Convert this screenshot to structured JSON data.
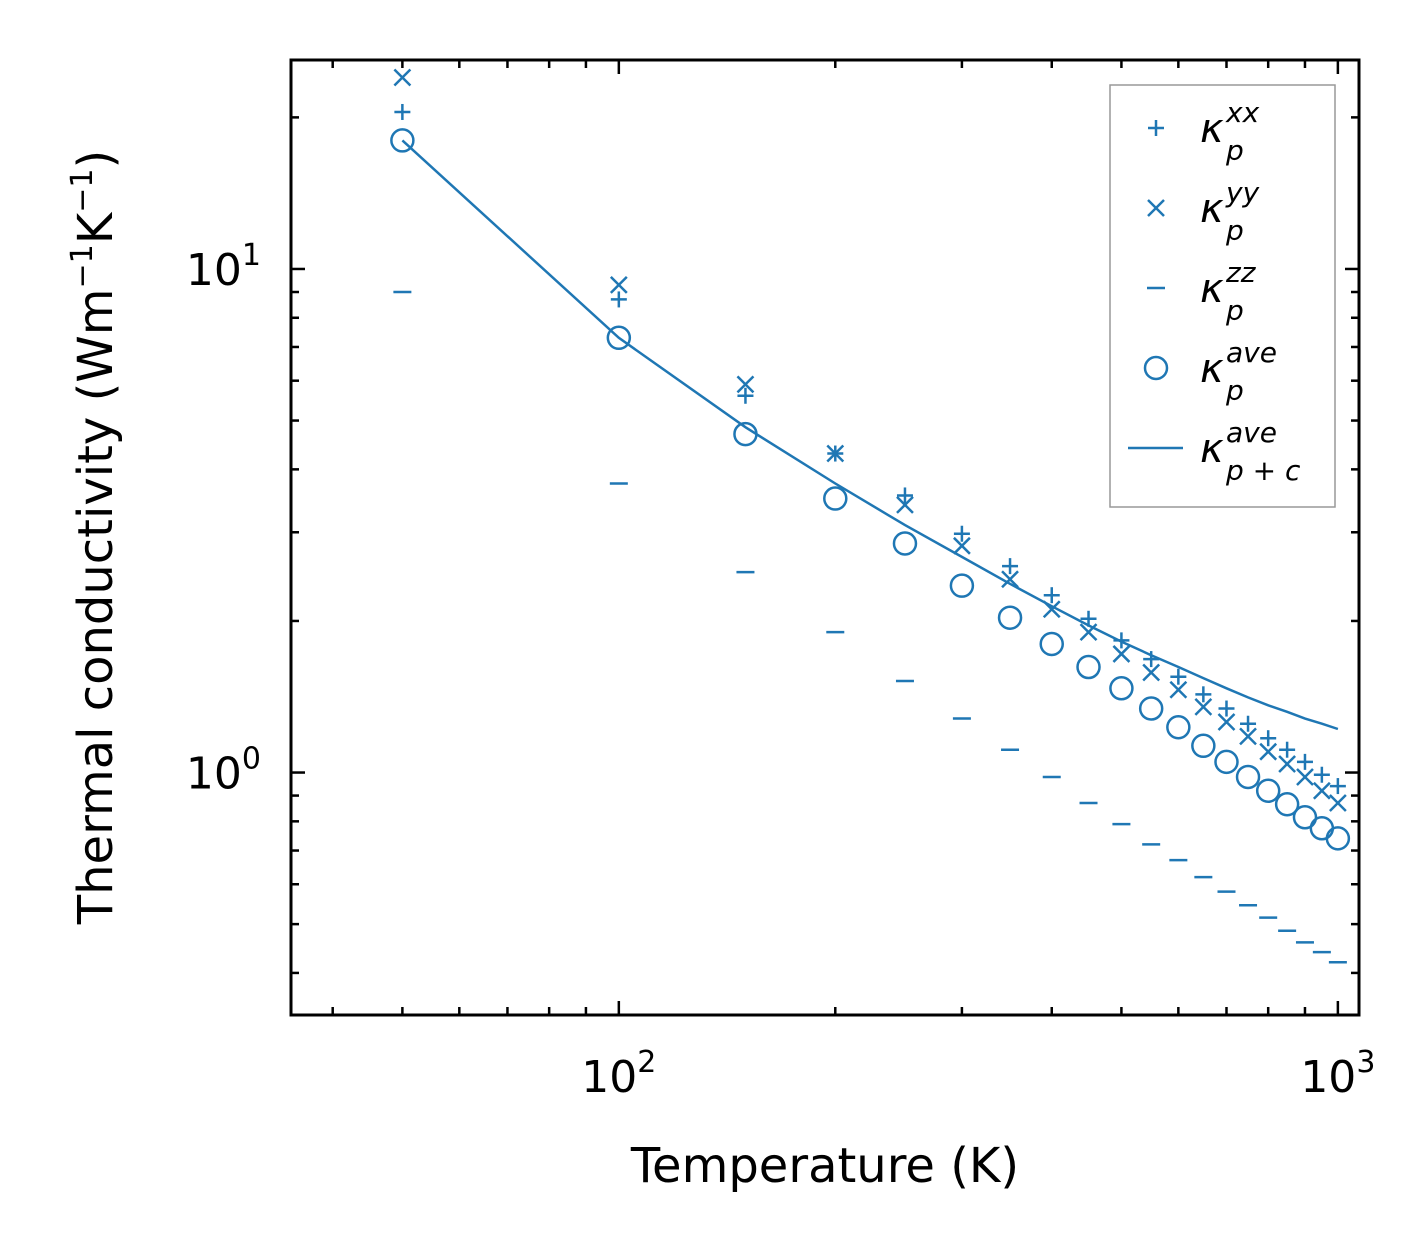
{
  "chart_data": {
    "type": "scatter",
    "xscale": "log",
    "yscale": "log",
    "xlim": [
      35,
      1070
    ],
    "ylim": [
      0.33,
      26
    ],
    "xlabel": "Temperature (K)",
    "ylabel": "Thermal conductivity (Wm$^{-1}$K$^{-1}$)",
    "ylabel_parts": {
      "main": "Thermal conductivity (Wm",
      "exp1": "−1",
      "mid": "K",
      "exp2": "−1",
      "end": ")"
    },
    "x_ticks": [
      {
        "base": "10",
        "exp": "2",
        "value": 100
      },
      {
        "base": "10",
        "exp": "3",
        "value": 1000
      }
    ],
    "y_ticks": [
      {
        "base": "10",
        "exp": "0",
        "value": 1
      },
      {
        "base": "10",
        "exp": "1",
        "value": 10
      }
    ],
    "color": "#1f77b4",
    "x": [
      50,
      100,
      150,
      200,
      250,
      300,
      350,
      400,
      450,
      500,
      550,
      600,
      650,
      700,
      750,
      800,
      850,
      900,
      950,
      1000
    ],
    "series": [
      {
        "name": "kxx",
        "marker": "plus",
        "values": [
          20.5,
          8.7,
          5.6,
          4.3,
          3.55,
          2.98,
          2.57,
          2.25,
          2.02,
          1.83,
          1.68,
          1.55,
          1.43,
          1.34,
          1.25,
          1.17,
          1.11,
          1.05,
          0.99,
          0.94
        ]
      },
      {
        "name": "kyy",
        "marker": "x",
        "values": [
          24.0,
          9.3,
          5.9,
          4.3,
          3.4,
          2.82,
          2.42,
          2.11,
          1.9,
          1.72,
          1.58,
          1.46,
          1.35,
          1.26,
          1.18,
          1.1,
          1.04,
          0.98,
          0.92,
          0.87
        ]
      },
      {
        "name": "kzz",
        "marker": "dash",
        "values": [
          9.0,
          3.75,
          2.5,
          1.9,
          1.52,
          1.28,
          1.11,
          0.98,
          0.87,
          0.79,
          0.72,
          0.67,
          0.62,
          0.58,
          0.545,
          0.515,
          0.485,
          0.46,
          0.44,
          0.42
        ]
      },
      {
        "name": "kave",
        "marker": "circle",
        "values": [
          18.0,
          7.3,
          4.7,
          3.5,
          2.85,
          2.35,
          2.03,
          1.8,
          1.62,
          1.47,
          1.34,
          1.23,
          1.13,
          1.05,
          0.98,
          0.92,
          0.865,
          0.815,
          0.775,
          0.74
        ]
      },
      {
        "name": "kave_pc",
        "marker": "line",
        "values": [
          18.0,
          7.3,
          4.85,
          3.75,
          3.1,
          2.68,
          2.37,
          2.14,
          1.96,
          1.82,
          1.71,
          1.62,
          1.54,
          1.47,
          1.41,
          1.36,
          1.32,
          1.28,
          1.25,
          1.22
        ]
      }
    ],
    "legend": {
      "position": "top-right",
      "entries": [
        {
          "series": "kxx",
          "symbol": "κ",
          "sub": "p",
          "sup": "xx"
        },
        {
          "series": "kyy",
          "symbol": "κ",
          "sub": "p",
          "sup": "yy"
        },
        {
          "series": "kzz",
          "symbol": "κ",
          "sub": "p",
          "sup": "zz"
        },
        {
          "series": "kave",
          "symbol": "κ",
          "sub": "p",
          "sup": "ave"
        },
        {
          "series": "kave_pc",
          "symbol": "κ",
          "sub": "p + c",
          "sup": "ave"
        }
      ]
    }
  }
}
